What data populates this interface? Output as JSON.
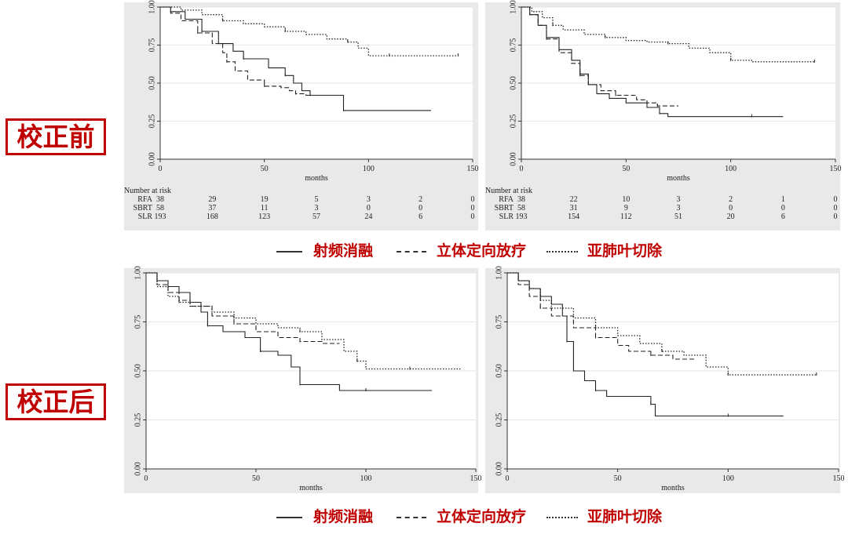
{
  "row_labels": {
    "before": "校正前",
    "after": "校正后"
  },
  "legend": {
    "rfa": "射频消融",
    "sbrt": "立体定向放疗",
    "slr": "亚肺叶切除",
    "colors": {
      "text": "#c00000",
      "line": "#333333"
    }
  },
  "chart_data": [
    {
      "id": "before-left",
      "type": "line",
      "xlabel": "months",
      "ylabel": "",
      "xlim": [
        0,
        150
      ],
      "ylim": [
        0,
        1
      ],
      "xticks": [
        0,
        50,
        100,
        150
      ],
      "yticks": [
        "0.00",
        "0.25",
        "0.50",
        "0.75",
        "1.00"
      ],
      "series": [
        {
          "name": "RFA",
          "style": "solid",
          "points": [
            [
              0,
              1
            ],
            [
              5,
              0.97
            ],
            [
              12,
              0.92
            ],
            [
              20,
              0.84
            ],
            [
              28,
              0.76
            ],
            [
              35,
              0.71
            ],
            [
              40,
              0.66
            ],
            [
              48,
              0.66
            ],
            [
              52,
              0.6
            ],
            [
              60,
              0.55
            ],
            [
              64,
              0.5
            ],
            [
              68,
              0.45
            ],
            [
              72,
              0.42
            ],
            [
              80,
              0.42
            ],
            [
              88,
              0.42
            ],
            [
              88,
              0.32
            ],
            [
              110,
              0.32
            ],
            [
              130,
              0.32
            ]
          ]
        },
        {
          "name": "SBRT",
          "style": "dashed",
          "points": [
            [
              0,
              1
            ],
            [
              5,
              0.96
            ],
            [
              10,
              0.91
            ],
            [
              18,
              0.83
            ],
            [
              25,
              0.76
            ],
            [
              30,
              0.7
            ],
            [
              32,
              0.64
            ],
            [
              36,
              0.58
            ],
            [
              42,
              0.52
            ],
            [
              50,
              0.48
            ],
            [
              58,
              0.47
            ],
            [
              62,
              0.45
            ],
            [
              65,
              0.43
            ],
            [
              70,
              0.42
            ],
            [
              80,
              0.42
            ]
          ]
        },
        {
          "name": "SLR",
          "style": "dotted",
          "points": [
            [
              0,
              1
            ],
            [
              10,
              0.98
            ],
            [
              20,
              0.95
            ],
            [
              30,
              0.91
            ],
            [
              40,
              0.89
            ],
            [
              50,
              0.87
            ],
            [
              60,
              0.84
            ],
            [
              70,
              0.82
            ],
            [
              80,
              0.79
            ],
            [
              90,
              0.77
            ],
            [
              95,
              0.73
            ],
            [
              100,
              0.68
            ],
            [
              110,
              0.68
            ],
            [
              120,
              0.68
            ],
            [
              130,
              0.68
            ],
            [
              143,
              0.68
            ]
          ]
        }
      ],
      "risk_table": {
        "header": "Number at risk",
        "times": [
          "0",
          "25",
          "50",
          "75",
          "100",
          "125",
          "150"
        ],
        "rows": [
          {
            "label": "RFA",
            "values": [
              "38",
              "29",
              "19",
              "5",
              "3",
              "2",
              "0"
            ]
          },
          {
            "label": "SBRT",
            "values": [
              "58",
              "37",
              "11",
              "3",
              "0",
              "0",
              "0"
            ]
          },
          {
            "label": "SLR",
            "values": [
              "193",
              "168",
              "123",
              "57",
              "24",
              "6",
              "0"
            ]
          }
        ]
      }
    },
    {
      "id": "before-right",
      "type": "line",
      "xlabel": "months",
      "ylabel": "",
      "xlim": [
        0,
        150
      ],
      "ylim": [
        0,
        1
      ],
      "xticks": [
        0,
        50,
        100,
        150
      ],
      "yticks": [
        "0.00",
        "0.25",
        "0.50",
        "0.75",
        "1.00"
      ],
      "series": [
        {
          "name": "RFA",
          "style": "solid",
          "points": [
            [
              0,
              1
            ],
            [
              4,
              0.95
            ],
            [
              8,
              0.88
            ],
            [
              12,
              0.8
            ],
            [
              18,
              0.72
            ],
            [
              24,
              0.65
            ],
            [
              28,
              0.56
            ],
            [
              32,
              0.49
            ],
            [
              36,
              0.43
            ],
            [
              42,
              0.4
            ],
            [
              50,
              0.37
            ],
            [
              60,
              0.34
            ],
            [
              66,
              0.3
            ],
            [
              70,
              0.28
            ],
            [
              90,
              0.28
            ],
            [
              110,
              0.28
            ],
            [
              125,
              0.28
            ]
          ]
        },
        {
          "name": "SBRT",
          "style": "dashed",
          "points": [
            [
              0,
              1
            ],
            [
              4,
              0.95
            ],
            [
              8,
              0.88
            ],
            [
              12,
              0.79
            ],
            [
              18,
              0.7
            ],
            [
              24,
              0.63
            ],
            [
              28,
              0.55
            ],
            [
              32,
              0.49
            ],
            [
              38,
              0.45
            ],
            [
              45,
              0.42
            ],
            [
              55,
              0.39
            ],
            [
              60,
              0.37
            ],
            [
              65,
              0.35
            ],
            [
              75,
              0.35
            ]
          ]
        },
        {
          "name": "SLR",
          "style": "dotted",
          "points": [
            [
              0,
              1
            ],
            [
              5,
              0.97
            ],
            [
              10,
              0.93
            ],
            [
              15,
              0.88
            ],
            [
              20,
              0.85
            ],
            [
              30,
              0.82
            ],
            [
              40,
              0.8
            ],
            [
              50,
              0.78
            ],
            [
              60,
              0.77
            ],
            [
              70,
              0.76
            ],
            [
              80,
              0.73
            ],
            [
              90,
              0.7
            ],
            [
              100,
              0.65
            ],
            [
              110,
              0.64
            ],
            [
              120,
              0.64
            ],
            [
              140,
              0.64
            ]
          ]
        }
      ],
      "risk_table": {
        "header": "Number at risk",
        "times": [
          "0",
          "25",
          "50",
          "75",
          "100",
          "125",
          "150"
        ],
        "rows": [
          {
            "label": "RFA",
            "values": [
              "38",
              "22",
              "10",
              "3",
              "2",
              "1",
              "0"
            ]
          },
          {
            "label": "SBRT",
            "values": [
              "58",
              "31",
              "9",
              "3",
              "0",
              "0",
              "0"
            ]
          },
          {
            "label": "SLR",
            "values": [
              "193",
              "154",
              "112",
              "51",
              "20",
              "6",
              "0"
            ]
          }
        ]
      }
    },
    {
      "id": "after-left",
      "type": "line",
      "xlabel": "months",
      "ylabel": "",
      "xlim": [
        0,
        150
      ],
      "ylim": [
        0,
        1
      ],
      "xticks": [
        0,
        50,
        100,
        150
      ],
      "yticks": [
        "0.00",
        "0.25",
        "0.50",
        "0.75",
        "1.00"
      ],
      "series": [
        {
          "name": "RFA",
          "style": "solid",
          "points": [
            [
              0,
              1
            ],
            [
              5,
              0.96
            ],
            [
              10,
              0.93
            ],
            [
              15,
              0.9
            ],
            [
              20,
              0.85
            ],
            [
              25,
              0.8
            ],
            [
              28,
              0.73
            ],
            [
              35,
              0.7
            ],
            [
              45,
              0.67
            ],
            [
              52,
              0.6
            ],
            [
              60,
              0.58
            ],
            [
              66,
              0.52
            ],
            [
              70,
              0.43
            ],
            [
              80,
              0.43
            ],
            [
              88,
              0.4
            ],
            [
              100,
              0.4
            ],
            [
              130,
              0.4
            ]
          ]
        },
        {
          "name": "SBRT",
          "style": "dashed",
          "points": [
            [
              0,
              1
            ],
            [
              5,
              0.94
            ],
            [
              10,
              0.9
            ],
            [
              15,
              0.86
            ],
            [
              20,
              0.83
            ],
            [
              30,
              0.78
            ],
            [
              40,
              0.74
            ],
            [
              50,
              0.7
            ],
            [
              60,
              0.67
            ],
            [
              70,
              0.65
            ],
            [
              80,
              0.64
            ],
            [
              88,
              0.64
            ]
          ]
        },
        {
          "name": "SLR",
          "style": "dotted",
          "points": [
            [
              0,
              1
            ],
            [
              5,
              0.93
            ],
            [
              10,
              0.88
            ],
            [
              15,
              0.85
            ],
            [
              20,
              0.83
            ],
            [
              30,
              0.8
            ],
            [
              40,
              0.77
            ],
            [
              50,
              0.74
            ],
            [
              60,
              0.72
            ],
            [
              70,
              0.7
            ],
            [
              80,
              0.66
            ],
            [
              90,
              0.6
            ],
            [
              96,
              0.55
            ],
            [
              100,
              0.51
            ],
            [
              110,
              0.51
            ],
            [
              120,
              0.51
            ],
            [
              143,
              0.51
            ]
          ]
        }
      ]
    },
    {
      "id": "after-right",
      "type": "line",
      "xlabel": "months",
      "ylabel": "",
      "xlim": [
        0,
        150
      ],
      "ylim": [
        0,
        1
      ],
      "xticks": [
        0,
        50,
        100,
        150
      ],
      "yticks": [
        "0.00",
        "0.25",
        "0.50",
        "0.75",
        "1.00"
      ],
      "series": [
        {
          "name": "RFA",
          "style": "solid",
          "points": [
            [
              0,
              1
            ],
            [
              5,
              0.96
            ],
            [
              10,
              0.92
            ],
            [
              15,
              0.88
            ],
            [
              20,
              0.84
            ],
            [
              25,
              0.78
            ],
            [
              27,
              0.65
            ],
            [
              30,
              0.5
            ],
            [
              35,
              0.45
            ],
            [
              40,
              0.4
            ],
            [
              45,
              0.37
            ],
            [
              55,
              0.37
            ],
            [
              65,
              0.33
            ],
            [
              67,
              0.27
            ],
            [
              80,
              0.27
            ],
            [
              100,
              0.27
            ],
            [
              125,
              0.27
            ]
          ]
        },
        {
          "name": "SBRT",
          "style": "dashed",
          "points": [
            [
              0,
              1
            ],
            [
              5,
              0.94
            ],
            [
              10,
              0.88
            ],
            [
              15,
              0.82
            ],
            [
              20,
              0.78
            ],
            [
              30,
              0.72
            ],
            [
              40,
              0.67
            ],
            [
              50,
              0.63
            ],
            [
              55,
              0.6
            ],
            [
              65,
              0.58
            ],
            [
              75,
              0.56
            ],
            [
              85,
              0.56
            ]
          ]
        },
        {
          "name": "SLR",
          "style": "dotted",
          "points": [
            [
              0,
              1
            ],
            [
              5,
              0.96
            ],
            [
              10,
              0.92
            ],
            [
              15,
              0.86
            ],
            [
              20,
              0.82
            ],
            [
              30,
              0.77
            ],
            [
              40,
              0.72
            ],
            [
              50,
              0.68
            ],
            [
              60,
              0.64
            ],
            [
              70,
              0.6
            ],
            [
              80,
              0.58
            ],
            [
              90,
              0.52
            ],
            [
              100,
              0.48
            ],
            [
              110,
              0.48
            ],
            [
              120,
              0.48
            ],
            [
              140,
              0.48
            ]
          ]
        }
      ]
    }
  ]
}
